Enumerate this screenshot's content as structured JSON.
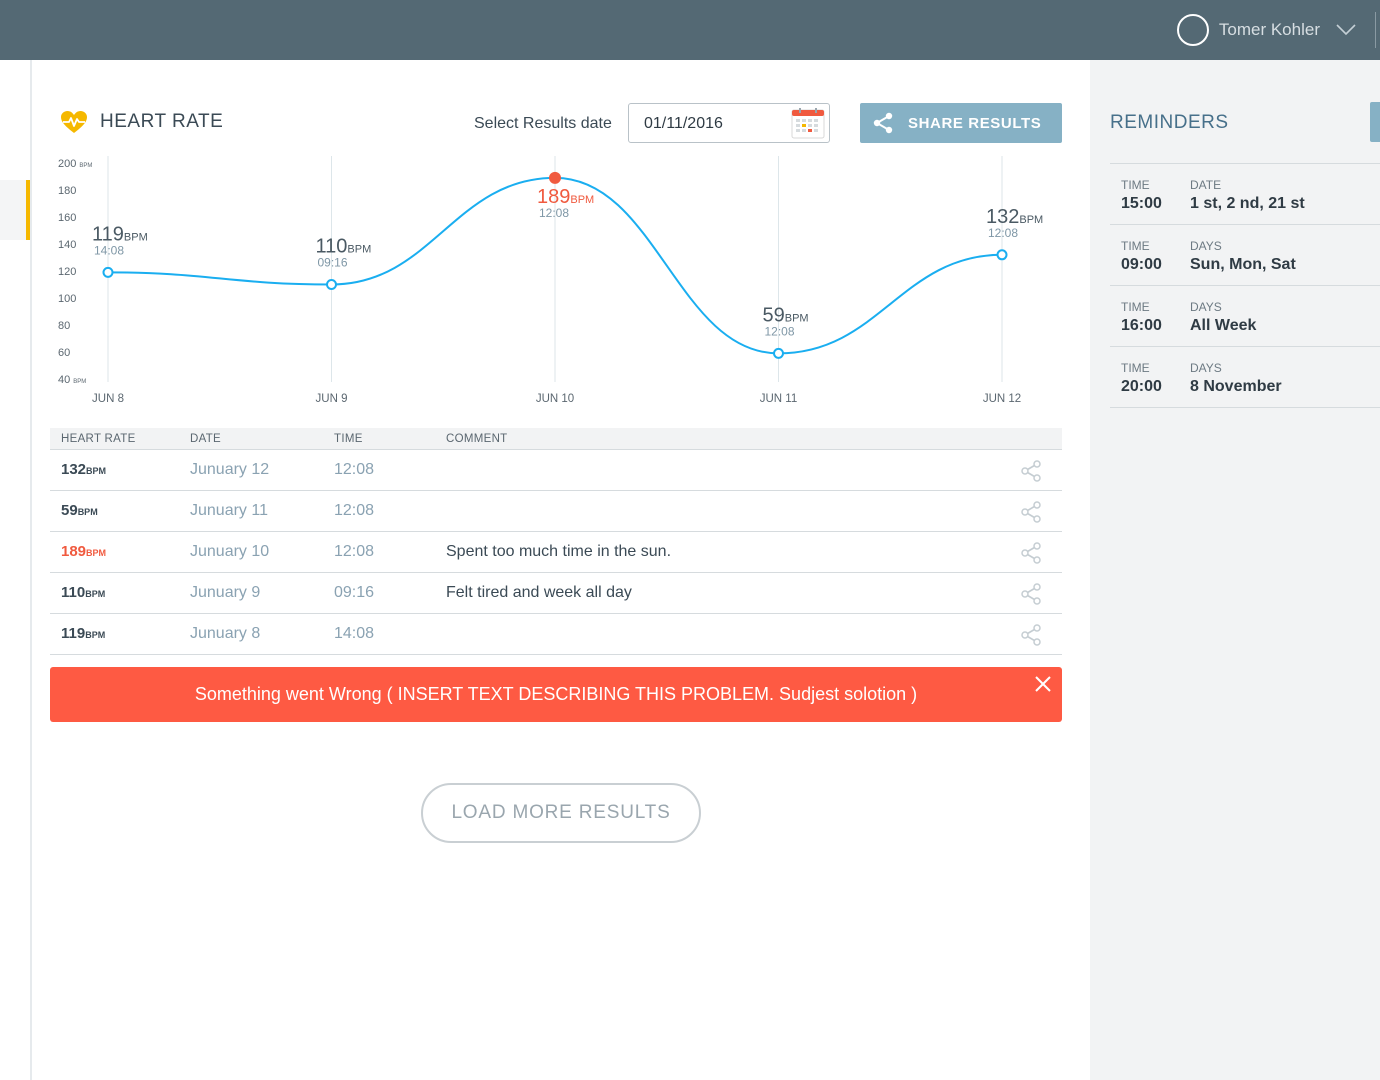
{
  "header": {
    "user_name": "Tomer Kohler"
  },
  "panel": {
    "title": "HEART RATE",
    "date_label": "Select Results date",
    "date_value": "01/11/2016",
    "share_label": "SHARE RESULTS"
  },
  "chart_data": {
    "type": "line",
    "categories": [
      "JUN 8",
      "JUN 9",
      "JUN 10",
      "JUN 11",
      "JUN 12"
    ],
    "values": [
      119,
      110,
      189,
      59,
      132
    ],
    "times": [
      "14:08",
      "09:16",
      "12:08",
      "12:08",
      "12:08"
    ],
    "unit": "BPM",
    "yticks": [
      "200",
      "180",
      "160",
      "140",
      "120",
      "100",
      "80",
      "60",
      "40"
    ],
    "ylim": [
      40,
      200
    ],
    "highlight_index": 2,
    "colors": {
      "line": "#1aaef0",
      "highlight": "#f05a3f",
      "grid": "#dde6ea"
    }
  },
  "table": {
    "headers": [
      "HEART RATE",
      "DATE",
      "TIME",
      "COMMENT"
    ],
    "unit": "BPM",
    "rows": [
      {
        "hr": "132",
        "date": "Junuary 12",
        "time": "12:08",
        "comment": "",
        "alert": false
      },
      {
        "hr": "59",
        "date": "Junuary 11",
        "time": "12:08",
        "comment": "",
        "alert": false
      },
      {
        "hr": "189",
        "date": "Junuary 10",
        "time": "12:08",
        "comment": "Spent too much time in the sun.",
        "alert": true
      },
      {
        "hr": "110",
        "date": "Junuary 9",
        "time": "09:16",
        "comment": "Felt tired and week all day",
        "alert": false
      },
      {
        "hr": "119",
        "date": "Junuary 8",
        "time": "14:08",
        "comment": "",
        "alert": false
      }
    ]
  },
  "error": {
    "message": "Something went Wrong ( INSERT TEXT DESCRIBING THIS PROBLEM. Sudjest solotion )"
  },
  "load_more_label": "LOAD MORE RESULTS",
  "reminders": {
    "title": "REMINDERS",
    "items": [
      {
        "time_label": "TIME",
        "days_label": "DATE",
        "time": "15:00",
        "days": "1 st, 2 nd, 21 st"
      },
      {
        "time_label": "TIME",
        "days_label": "DAYS",
        "time": "09:00",
        "days": "Sun, Mon, Sat"
      },
      {
        "time_label": "TIME",
        "days_label": "DAYS",
        "time": "16:00",
        "days": "All Week"
      },
      {
        "time_label": "TIME",
        "days_label": "DAYS",
        "time": "20:00",
        "days": "8 November"
      }
    ]
  }
}
